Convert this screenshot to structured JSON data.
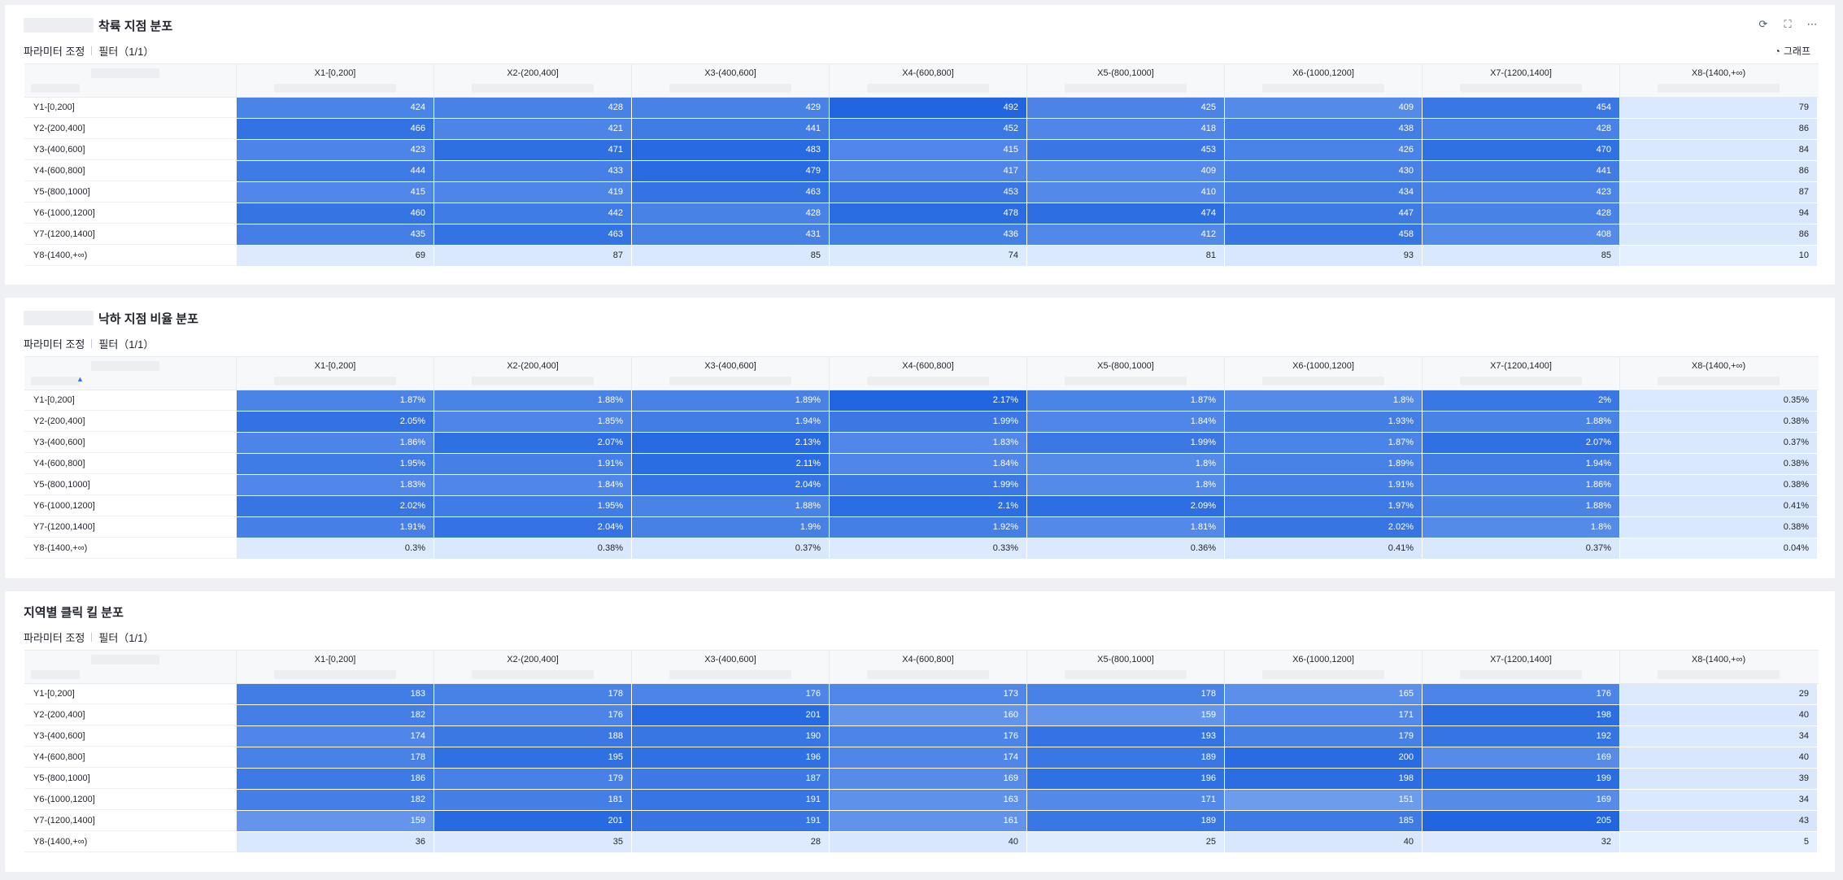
{
  "panel_actions": {
    "refresh_icon": "refresh-icon",
    "fullscreen_icon": "fullscreen-icon",
    "more_icon": "more-icon"
  },
  "toolbar": {
    "param_label": "파라미터 조정",
    "filter_label": "필터（1/1）",
    "chart_toggle_label": "그래프"
  },
  "colors": {
    "max": "#2166e0",
    "min": "#e4efff"
  },
  "columns": [
    "X1-[0,200]",
    "X2-(200,400]",
    "X3-(400,600]",
    "X4-(600,800]",
    "X5-(800,1000]",
    "X6-(1000,1200]",
    "X7-(1200,1400]",
    "X8-(1400,+∞)"
  ],
  "rows": [
    "Y1-[0,200]",
    "Y2-(200,400]",
    "Y3-(400,600]",
    "Y4-(600,800]",
    "Y5-(800,1000]",
    "Y6-(1000,1200]",
    "Y7-(1200,1400]",
    "Y8-(1400,+∞)"
  ],
  "panels": [
    {
      "title": "착륙 지점 분포",
      "title_blurred_prefix": true,
      "show_actions": true,
      "show_chart_toggle": true,
      "show_sort_icon": false,
      "cells": [
        [
          "424",
          "428",
          "429",
          "492",
          "425",
          "409",
          "454",
          "79"
        ],
        [
          "466",
          "421",
          "441",
          "452",
          "418",
          "438",
          "428",
          "86"
        ],
        [
          "423",
          "471",
          "483",
          "415",
          "453",
          "426",
          "470",
          "84"
        ],
        [
          "444",
          "433",
          "479",
          "417",
          "409",
          "430",
          "441",
          "86"
        ],
        [
          "415",
          "419",
          "463",
          "453",
          "410",
          "434",
          "423",
          "87"
        ],
        [
          "460",
          "442",
          "428",
          "478",
          "474",
          "447",
          "428",
          "94"
        ],
        [
          "435",
          "463",
          "431",
          "436",
          "412",
          "458",
          "408",
          "86"
        ],
        [
          "69",
          "87",
          "85",
          "74",
          "81",
          "93",
          "85",
          "10"
        ]
      ],
      "levels": [
        [
          424,
          428,
          429,
          492,
          425,
          409,
          454,
          79
        ],
        [
          466,
          421,
          441,
          452,
          418,
          438,
          428,
          86
        ],
        [
          423,
          471,
          483,
          415,
          453,
          426,
          470,
          84
        ],
        [
          444,
          433,
          479,
          417,
          409,
          430,
          441,
          86
        ],
        [
          415,
          419,
          463,
          453,
          410,
          434,
          423,
          87
        ],
        [
          460,
          442,
          428,
          478,
          474,
          447,
          428,
          94
        ],
        [
          435,
          463,
          431,
          436,
          412,
          458,
          408,
          86
        ],
        [
          69,
          87,
          85,
          74,
          81,
          93,
          85,
          10
        ]
      ]
    },
    {
      "title": "낙하 지점 비율 분포",
      "title_blurred_prefix": true,
      "show_actions": false,
      "show_chart_toggle": false,
      "show_sort_icon": true,
      "cells": [
        [
          "1.87%",
          "1.88%",
          "1.89%",
          "2.17%",
          "1.87%",
          "1.8%",
          "2%",
          "0.35%"
        ],
        [
          "2.05%",
          "1.85%",
          "1.94%",
          "1.99%",
          "1.84%",
          "1.93%",
          "1.88%",
          "0.38%"
        ],
        [
          "1.86%",
          "2.07%",
          "2.13%",
          "1.83%",
          "1.99%",
          "1.87%",
          "2.07%",
          "0.37%"
        ],
        [
          "1.95%",
          "1.91%",
          "2.11%",
          "1.84%",
          "1.8%",
          "1.89%",
          "1.94%",
          "0.38%"
        ],
        [
          "1.83%",
          "1.84%",
          "2.04%",
          "1.99%",
          "1.8%",
          "1.91%",
          "1.86%",
          "0.38%"
        ],
        [
          "2.02%",
          "1.95%",
          "1.88%",
          "2.1%",
          "2.09%",
          "1.97%",
          "1.88%",
          "0.41%"
        ],
        [
          "1.91%",
          "2.04%",
          "1.9%",
          "1.92%",
          "1.81%",
          "2.02%",
          "1.8%",
          "0.38%"
        ],
        [
          "0.3%",
          "0.38%",
          "0.37%",
          "0.33%",
          "0.36%",
          "0.41%",
          "0.37%",
          "0.04%"
        ]
      ],
      "levels": [
        [
          1.87,
          1.88,
          1.89,
          2.17,
          1.87,
          1.8,
          2,
          0.35
        ],
        [
          2.05,
          1.85,
          1.94,
          1.99,
          1.84,
          1.93,
          1.88,
          0.38
        ],
        [
          1.86,
          2.07,
          2.13,
          1.83,
          1.99,
          1.87,
          2.07,
          0.37
        ],
        [
          1.95,
          1.91,
          2.11,
          1.84,
          1.8,
          1.89,
          1.94,
          0.38
        ],
        [
          1.83,
          1.84,
          2.04,
          1.99,
          1.8,
          1.91,
          1.86,
          0.38
        ],
        [
          2.02,
          1.95,
          1.88,
          2.1,
          2.09,
          1.97,
          1.88,
          0.41
        ],
        [
          1.91,
          2.04,
          1.9,
          1.92,
          1.81,
          2.02,
          1.8,
          0.38
        ],
        [
          0.3,
          0.38,
          0.37,
          0.33,
          0.36,
          0.41,
          0.37,
          0.04
        ]
      ]
    },
    {
      "title": "지역별 클릭 킬 분포",
      "title_blurred_prefix": false,
      "show_actions": false,
      "show_chart_toggle": false,
      "show_sort_icon": false,
      "cells": [
        [
          "183",
          "178",
          "176",
          "173",
          "178",
          "165",
          "176",
          "29"
        ],
        [
          "182",
          "176",
          "201",
          "160",
          "159",
          "171",
          "198",
          "40"
        ],
        [
          "174",
          "188",
          "190",
          "176",
          "193",
          "179",
          "192",
          "34"
        ],
        [
          "178",
          "195",
          "196",
          "174",
          "189",
          "200",
          "169",
          "40"
        ],
        [
          "186",
          "179",
          "187",
          "169",
          "196",
          "198",
          "199",
          "39"
        ],
        [
          "182",
          "181",
          "191",
          "163",
          "171",
          "151",
          "169",
          "34"
        ],
        [
          "159",
          "201",
          "191",
          "161",
          "189",
          "185",
          "205",
          "43"
        ],
        [
          "36",
          "35",
          "28",
          "40",
          "25",
          "40",
          "32",
          "5"
        ]
      ],
      "levels": [
        [
          183,
          178,
          176,
          173,
          178,
          165,
          176,
          29
        ],
        [
          182,
          176,
          201,
          160,
          159,
          171,
          198,
          40
        ],
        [
          174,
          188,
          190,
          176,
          193,
          179,
          192,
          34
        ],
        [
          178,
          195,
          196,
          174,
          189,
          200,
          169,
          40
        ],
        [
          186,
          179,
          187,
          169,
          196,
          198,
          199,
          39
        ],
        [
          182,
          181,
          191,
          163,
          171,
          151,
          169,
          34
        ],
        [
          159,
          201,
          191,
          161,
          189,
          185,
          205,
          43
        ],
        [
          36,
          35,
          28,
          40,
          25,
          40,
          32,
          5
        ]
      ]
    }
  ]
}
